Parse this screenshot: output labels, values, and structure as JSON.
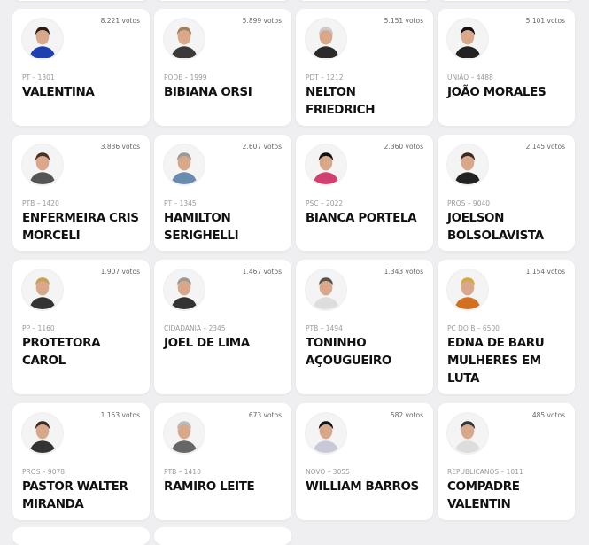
{
  "candidates": [
    {
      "name": "VALENTINA",
      "party": "PT – 1301",
      "votes": "8.221 votos",
      "shirt": "#1f3fb0",
      "hair": "#2a1a14"
    },
    {
      "name": "BIBIANA ORSI",
      "party": "PODE – 1999",
      "votes": "5.899 votos",
      "shirt": "#3a3a3a",
      "hair": "#a08060"
    },
    {
      "name": "NELTON FRIEDRICH",
      "party": "PDT – 1212",
      "votes": "5.151 votos",
      "shirt": "#2a2a2a",
      "hair": "#ccc"
    },
    {
      "name": "JOÃO MORALES",
      "party": "UNIÃO – 4488",
      "votes": "5.101 votos",
      "shirt": "#222",
      "hair": "#111"
    },
    {
      "name": "ENFERMEIRA CRIS MORCELI",
      "party": "PTB – 1420",
      "votes": "3.836 votos",
      "shirt": "#555",
      "hair": "#4a3020"
    },
    {
      "name": "HAMILTON SERIGHELLI",
      "party": "PT – 1345",
      "votes": "2.607 votos",
      "shirt": "#6a8ab0",
      "hair": "#999"
    },
    {
      "name": "BIANCA PORTELA",
      "party": "PSC – 2022",
      "votes": "2.360 votos",
      "shirt": "#d04070",
      "hair": "#111"
    },
    {
      "name": "JOELSON BOLSOLAVISTA",
      "party": "PROS – 9040",
      "votes": "2.145 votos",
      "shirt": "#222",
      "hair": "#3a2a20"
    },
    {
      "name": "PROTETORA CAROL",
      "party": "PP – 1160",
      "votes": "1.907 votos",
      "shirt": "#333",
      "hair": "#c8a050"
    },
    {
      "name": "JOEL DE LIMA",
      "party": "CIDADANIA – 2345",
      "votes": "1.467 votos",
      "shirt": "#333",
      "hair": "#999"
    },
    {
      "name": "TONINHO AÇOUGUEIRO",
      "party": "PTB – 1494",
      "votes": "1.343 votos",
      "shirt": "#ddd",
      "hair": "#555"
    },
    {
      "name": "EDNA DE BARU MULHERES EM LUTA",
      "party": "PC do B – 6500",
      "votes": "1.154 votos",
      "shirt": "#d07020",
      "hair": "#d8a840"
    },
    {
      "name": "PASTOR WALTER MIRANDA",
      "party": "PROS – 9078",
      "votes": "1.153 votos",
      "shirt": "#333",
      "hair": "#3a2a20"
    },
    {
      "name": "RAMIRO LEITE",
      "party": "PTB – 1410",
      "votes": "673 votos",
      "shirt": "#666",
      "hair": "#bbb"
    },
    {
      "name": "WILLIAM BARROS",
      "party": "NOVO – 3055",
      "votes": "582 votos",
      "shirt": "#c8c8d8",
      "hair": "#111"
    },
    {
      "name": "COMPADRE VALENTIN",
      "party": "REPUBLICANOS – 1011",
      "votes": "485 votos",
      "shirt": "#ddd",
      "hair": "#333"
    }
  ]
}
